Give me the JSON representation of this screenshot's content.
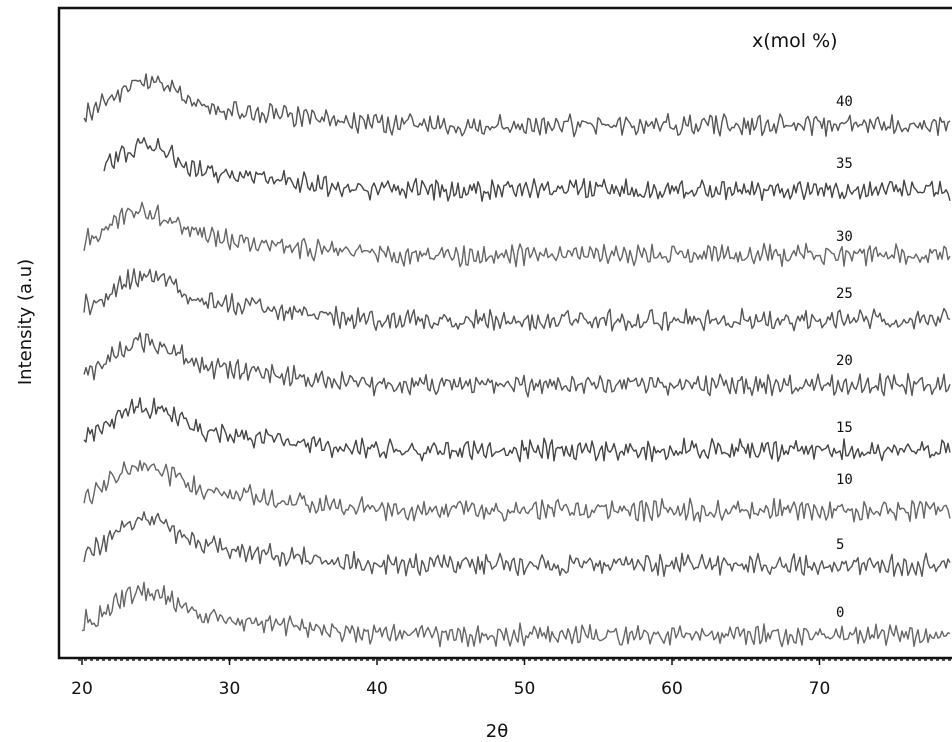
{
  "chart_data": {
    "type": "line",
    "title": "",
    "xlabel": "2θ",
    "ylabel": "Intensity (a.u)",
    "legend_title": "x(mol %)",
    "xlim": [
      20,
      80
    ],
    "x_ticks": [
      20,
      30,
      40,
      50,
      60,
      70
    ],
    "y_ticks": [],
    "grid": false,
    "legend_placement": "top-right",
    "description_style": "stacked XRD patterns, amorphous halo near 2θ ≈ 22–28",
    "series": [
      {
        "name": "40",
        "color": "#555555"
      },
      {
        "name": "35",
        "color": "#444444"
      },
      {
        "name": "30",
        "color": "#666666"
      },
      {
        "name": "25",
        "color": "#555555"
      },
      {
        "name": "20",
        "color": "#555555"
      },
      {
        "name": "15",
        "color": "#444444"
      },
      {
        "name": "10",
        "color": "#666666"
      },
      {
        "name": "5",
        "color": "#555555"
      },
      {
        "name": "0",
        "color": "#666666"
      }
    ]
  }
}
